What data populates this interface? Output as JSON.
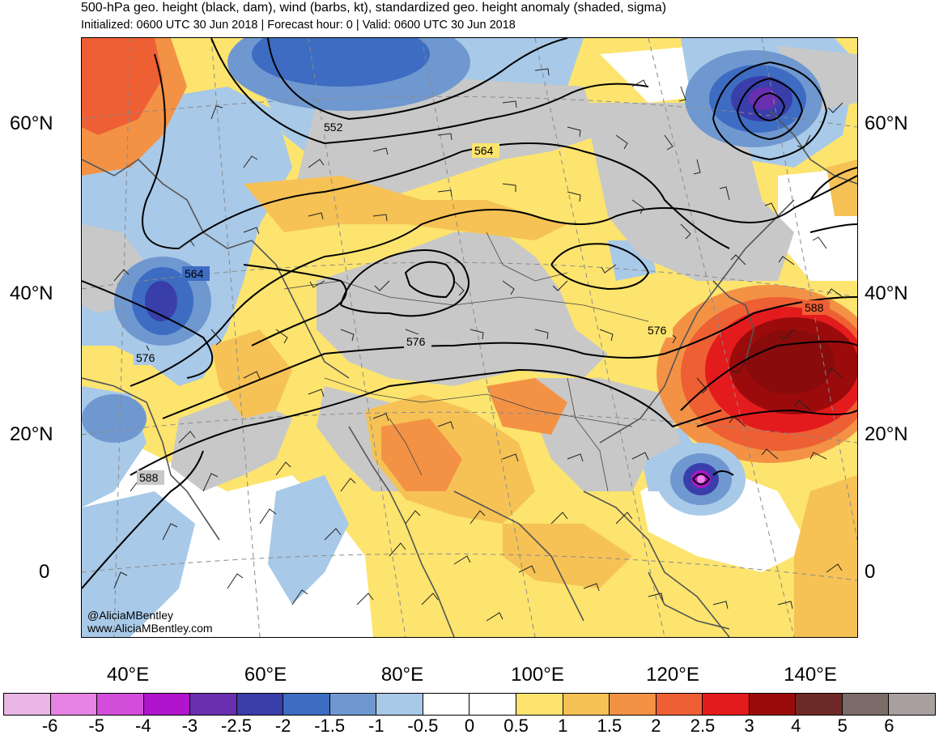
{
  "header": {
    "title": "500-hPa geo. height (black, dam), wind (barbs, kt), standardized geo. height anomaly (shaded, sigma)",
    "subtitle": "Initialized: 0600 UTC 30 Jun 2018 | Forecast hour: 0 | Valid: 0600 UTC 30 Jun 2018"
  },
  "map": {
    "lat_labels": [
      "60°N",
      "40°N",
      "20°N",
      "0"
    ],
    "lon_labels": [
      "40°E",
      "60°E",
      "80°E",
      "100°E",
      "120°E",
      "140°E"
    ],
    "contour_labels": [
      "552",
      "564",
      "564",
      "576",
      "576",
      "576",
      "588",
      "588"
    ]
  },
  "credit": {
    "handle": "@AliciaMBentley",
    "website": "www.AliciaMBentley.com"
  },
  "colorbar": {
    "colors": [
      "#e9b6e6",
      "#e783e3",
      "#d34ddb",
      "#b014cc",
      "#6a2fb0",
      "#3a3eaa",
      "#3d6cc2",
      "#6f98d0",
      "#a8c9e8",
      "#ffffff",
      "#ffffff",
      "#fce46e",
      "#f6c255",
      "#f39245",
      "#ee5f34",
      "#e41b1c",
      "#9c0b0b",
      "#6e2a26",
      "#7b6c6a",
      "#a89f9e"
    ],
    "labels": [
      "-6",
      "-5",
      "-4",
      "-3",
      "-2.5",
      "-2",
      "-1.5",
      "-1",
      "-0.5",
      "0",
      "0.5",
      "1",
      "1.5",
      "2",
      "2.5",
      "3",
      "4",
      "5",
      "6"
    ]
  }
}
